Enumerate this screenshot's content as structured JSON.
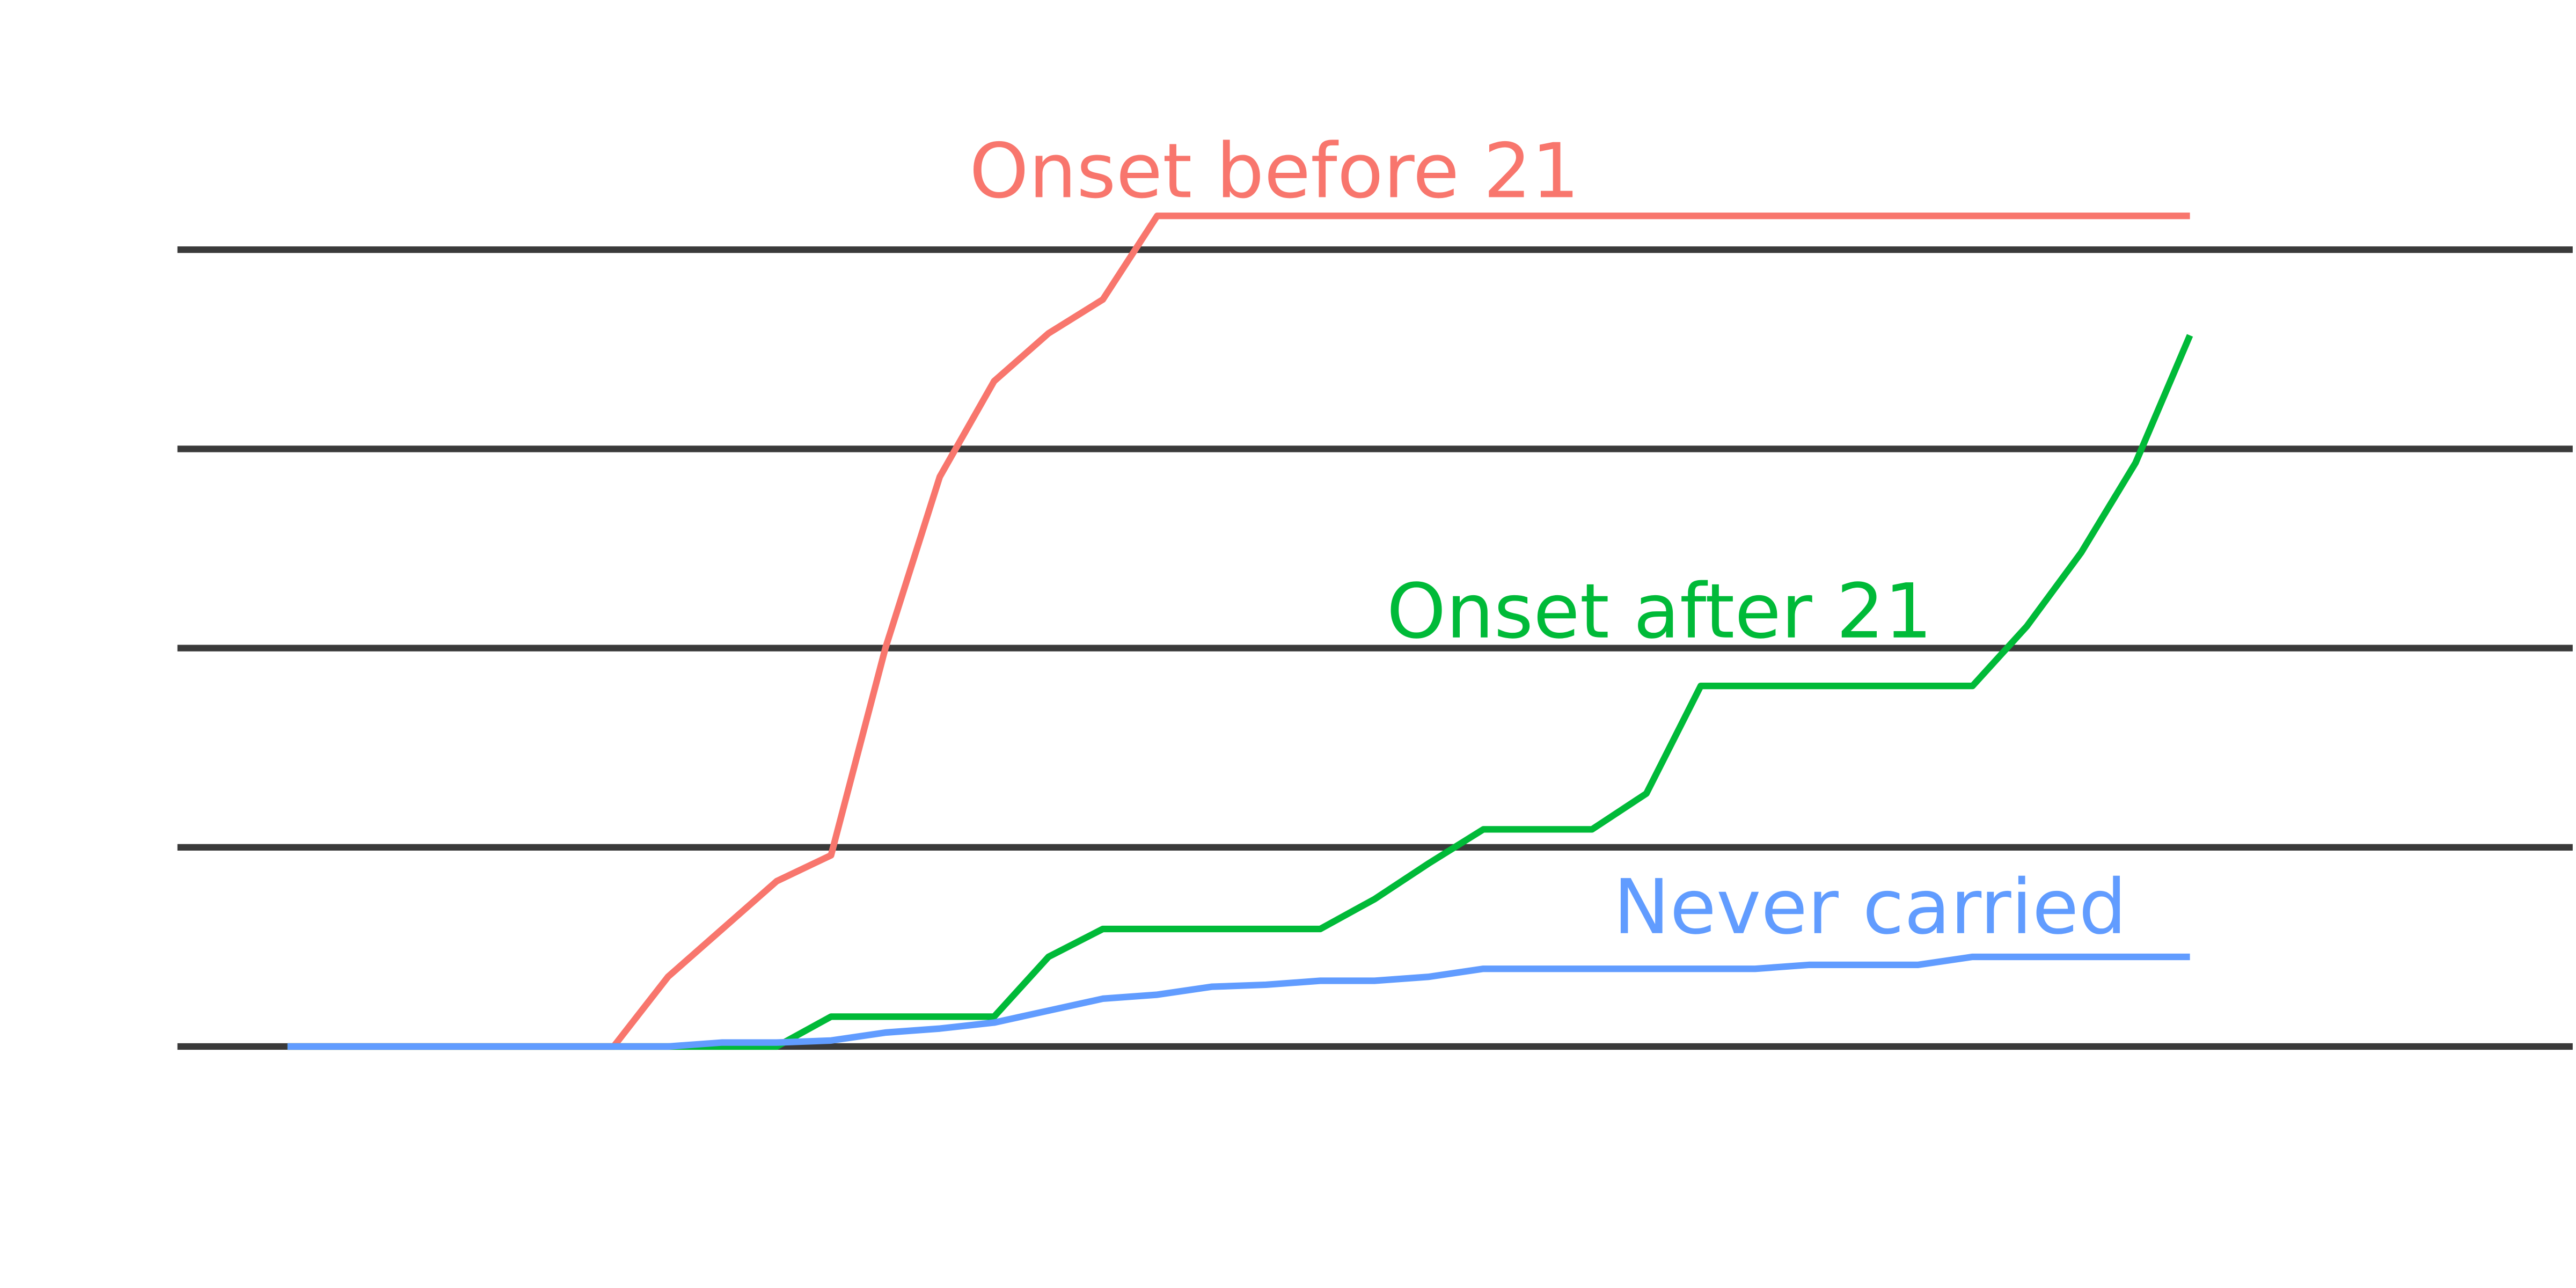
{
  "chart_data": {
    "type": "line",
    "title": "",
    "xlabel": "",
    "ylabel": "",
    "grid": true,
    "gridlines_y": [
      0,
      1,
      2,
      3,
      4
    ],
    "ylim": [
      0,
      4.2
    ],
    "xlim": [
      0,
      35
    ],
    "series": [
      {
        "name": "Onset before 21",
        "color": "#F8766D",
        "points": [
          [
            0,
            0
          ],
          [
            6,
            0
          ],
          [
            7,
            0.35
          ],
          [
            8,
            0.59
          ],
          [
            9,
            0.83
          ],
          [
            10,
            0.96
          ],
          [
            11,
            2.0
          ],
          [
            12,
            2.86
          ],
          [
            13,
            3.34
          ],
          [
            14,
            3.58
          ],
          [
            15,
            3.75
          ],
          [
            16,
            4.17
          ],
          [
            35,
            4.17
          ]
        ]
      },
      {
        "name": "Onset after 21",
        "color": "#00BA38",
        "points": [
          [
            0,
            0
          ],
          [
            9,
            0
          ],
          [
            10,
            0.15
          ],
          [
            13,
            0.15
          ],
          [
            14,
            0.45
          ],
          [
            15,
            0.59
          ],
          [
            19,
            0.59
          ],
          [
            20,
            0.74
          ],
          [
            21,
            0.92
          ],
          [
            22,
            1.09
          ],
          [
            24,
            1.09
          ],
          [
            25,
            1.27
          ],
          [
            26,
            1.81
          ],
          [
            31,
            1.81
          ],
          [
            32,
            2.11
          ],
          [
            33,
            2.48
          ],
          [
            34,
            2.93
          ],
          [
            35,
            3.57
          ]
        ]
      },
      {
        "name": "Never carried",
        "color": "#619CFF",
        "points": [
          [
            0,
            0
          ],
          [
            7,
            0
          ],
          [
            8,
            0.02
          ],
          [
            9,
            0.02
          ],
          [
            10,
            0.03
          ],
          [
            11,
            0.07
          ],
          [
            12,
            0.09
          ],
          [
            13,
            0.12
          ],
          [
            14,
            0.18
          ],
          [
            15,
            0.24
          ],
          [
            16,
            0.26
          ],
          [
            17,
            0.3
          ],
          [
            18,
            0.31
          ],
          [
            19,
            0.33
          ],
          [
            20,
            0.33
          ],
          [
            21,
            0.35
          ],
          [
            22,
            0.39
          ],
          [
            27,
            0.39
          ],
          [
            28,
            0.41
          ],
          [
            30,
            0.41
          ],
          [
            31,
            0.45
          ],
          [
            35,
            0.45
          ]
        ]
      }
    ],
    "gridline_color": "#3a3a3a"
  }
}
